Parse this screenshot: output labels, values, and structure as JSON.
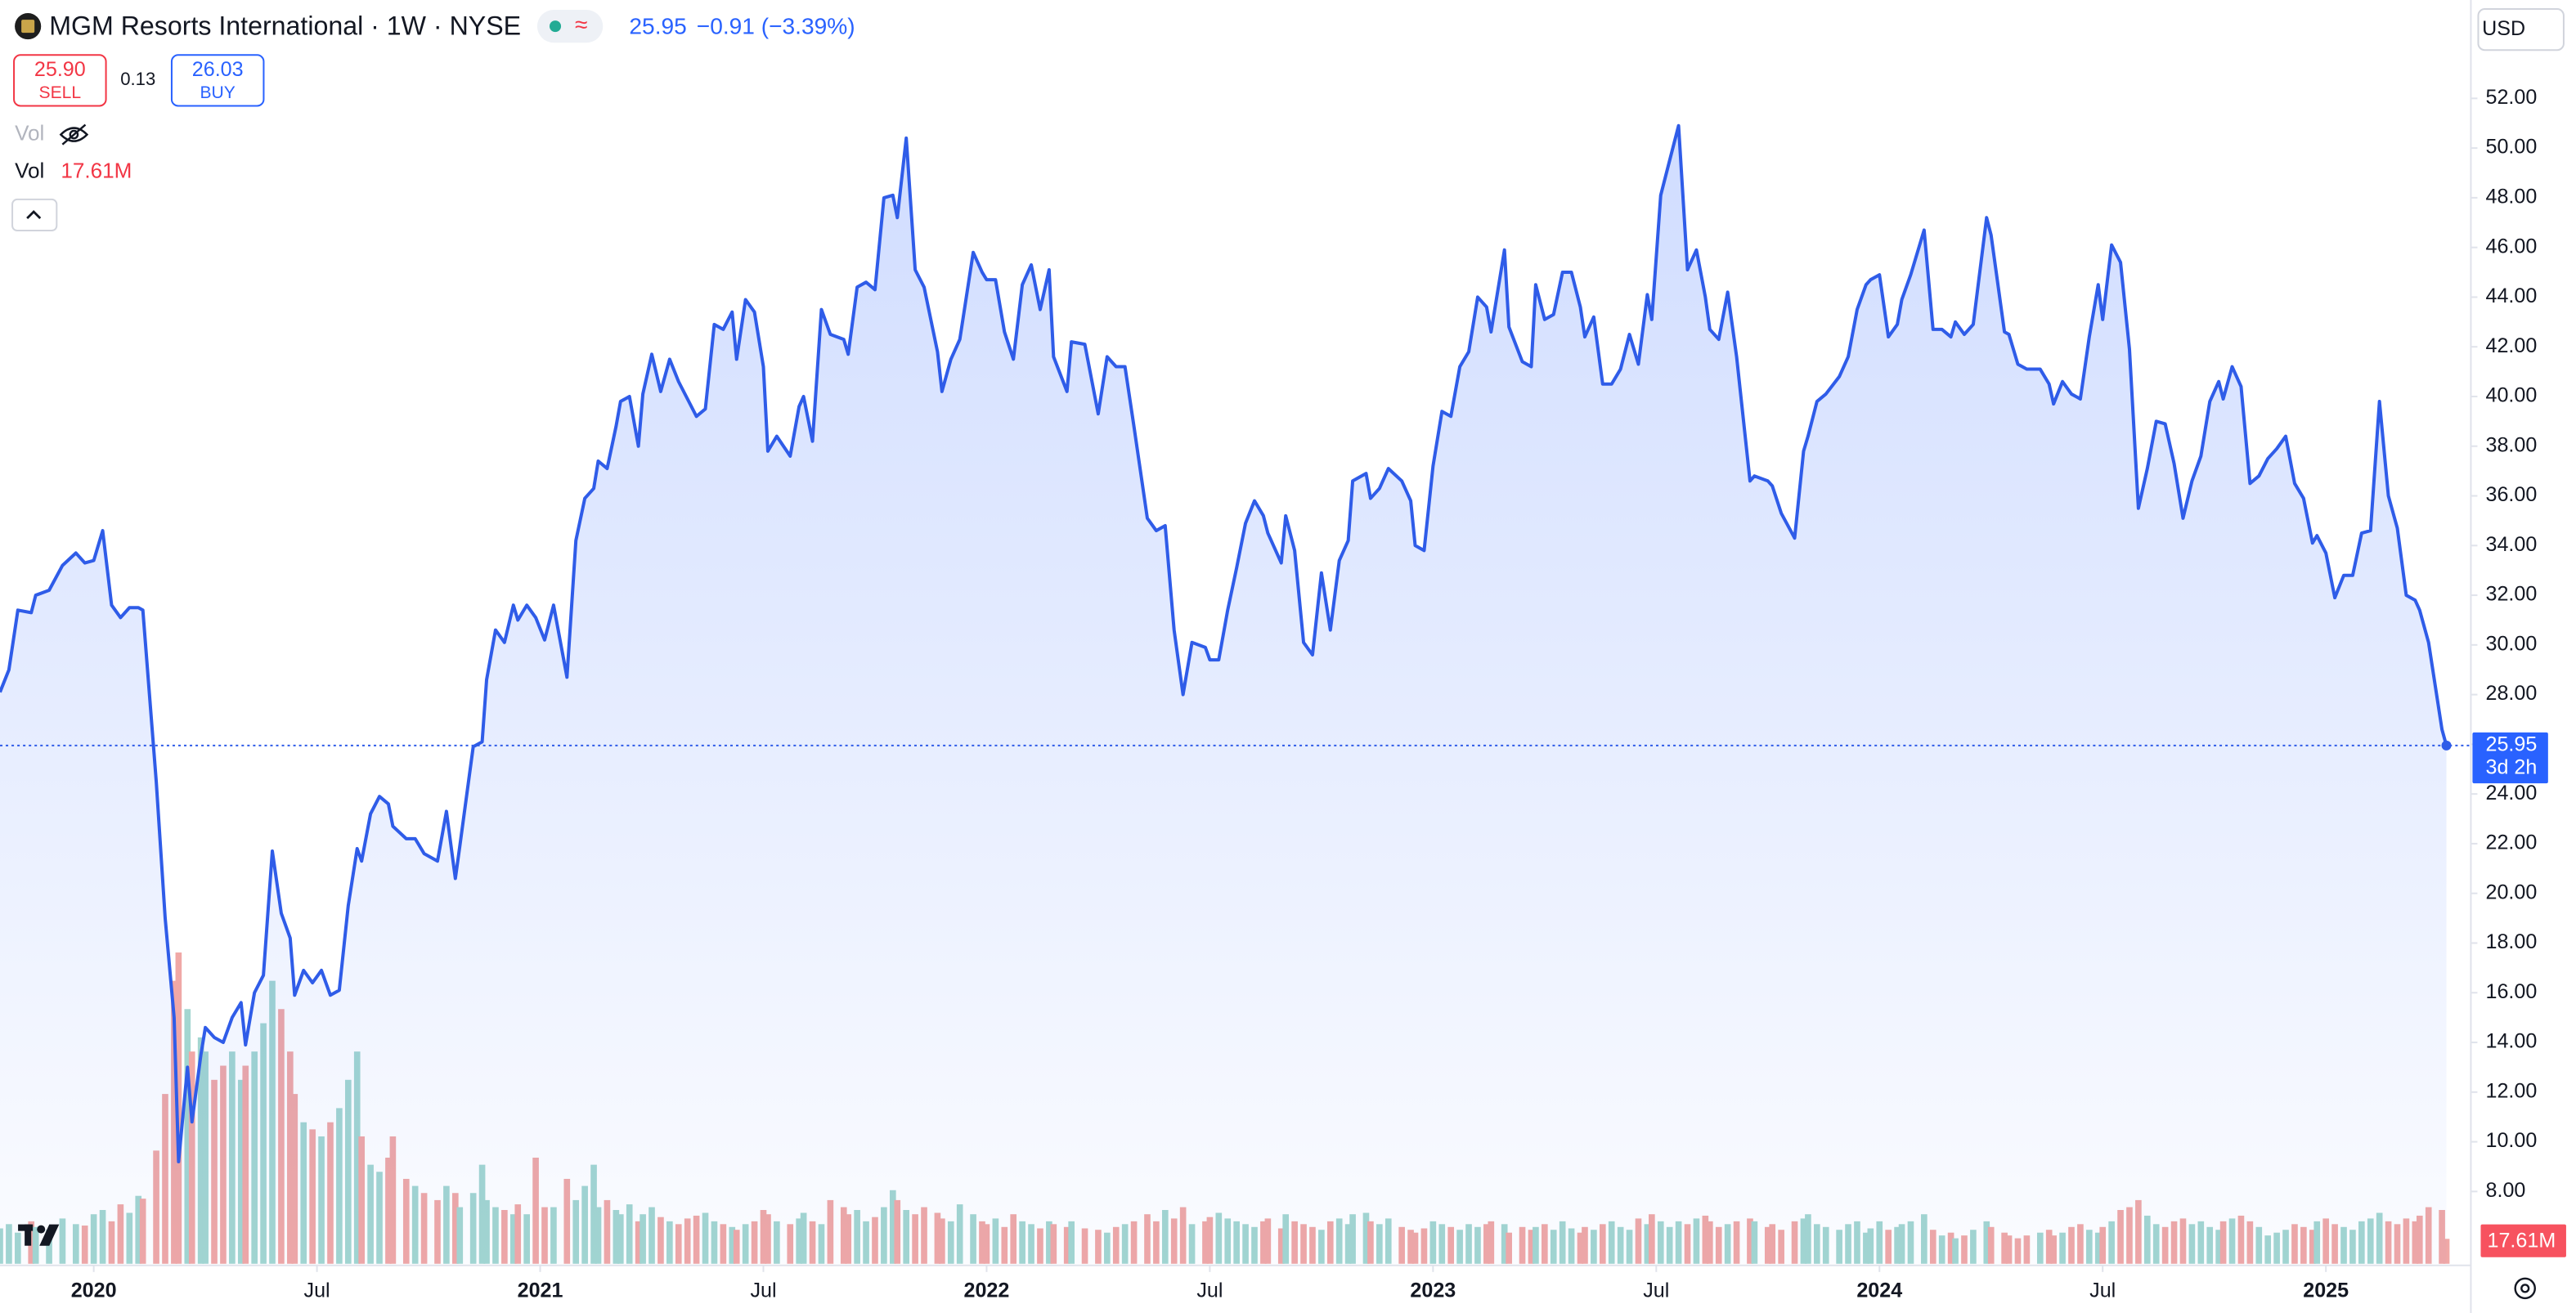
{
  "header": {
    "title": "MGM Resorts International · 1W · NYSE",
    "pill_symbol": "≈",
    "price": "25.95",
    "change": "−0.91 (−3.39%)",
    "sell_price": "25.90",
    "sell": "SELL",
    "spread": "0.13",
    "buy_price": "26.03",
    "buy": "BUY",
    "vol_hidden": "Vol",
    "vol": "Vol",
    "vol_value": "17.61M",
    "currency": "USD"
  },
  "chart_data": {
    "type": "line",
    "color": "#2f5ce8",
    "x": [
      2019.79,
      2019.81,
      2019.83,
      2019.86,
      2019.87,
      2019.9,
      2019.93,
      2019.96,
      2019.98,
      2020.0,
      2020.02,
      2020.04,
      2020.06,
      2020.08,
      2020.1,
      2020.11,
      2020.14,
      2020.16,
      2020.18,
      2020.19,
      2020.21,
      2020.22,
      2020.24,
      2020.25,
      2020.27,
      2020.29,
      2020.31,
      2020.33,
      2020.34,
      2020.36,
      2020.38,
      2020.4,
      2020.42,
      2020.44,
      2020.45,
      2020.47,
      2020.49,
      2020.51,
      2020.53,
      2020.55,
      2020.57,
      2020.59,
      2020.6,
      2020.62,
      2020.64,
      2020.66,
      2020.67,
      2020.7,
      2020.72,
      2020.74,
      2020.77,
      2020.79,
      2020.81,
      2020.82,
      2020.85,
      2020.87,
      2020.88,
      2020.9,
      2020.92,
      2020.94,
      2020.95,
      2020.97,
      2020.99,
      2021.01,
      2021.03,
      2021.06,
      2021.08,
      2021.1,
      2021.12,
      2021.13,
      2021.15,
      2021.17,
      2021.18,
      2021.2,
      2021.22,
      2021.23,
      2021.25,
      2021.27,
      2021.29,
      2021.31,
      2021.33,
      2021.35,
      2021.37,
      2021.39,
      2021.41,
      2021.43,
      2021.44,
      2021.46,
      2021.48,
      2021.5,
      2021.51,
      2021.53,
      2021.56,
      2021.58,
      2021.59,
      2021.61,
      2021.63,
      2021.65,
      2021.68,
      2021.69,
      2021.71,
      2021.73,
      2021.75,
      2021.77,
      2021.79,
      2021.8,
      2021.82,
      2021.84,
      2021.86,
      2021.89,
      2021.9,
      2021.92,
      2021.94,
      2021.97,
      2021.99,
      2022.0,
      2022.02,
      2022.04,
      2022.06,
      2022.08,
      2022.1,
      2022.12,
      2022.14,
      2022.15,
      2022.18,
      2022.19,
      2022.22,
      2022.25,
      2022.27,
      2022.29,
      2022.31,
      2022.33,
      2022.36,
      2022.38,
      2022.4,
      2022.42,
      2022.44,
      2022.46,
      2022.49,
      2022.5,
      2022.52,
      2022.54,
      2022.56,
      2022.58,
      2022.6,
      2022.62,
      2022.63,
      2022.66,
      2022.67,
      2022.69,
      2022.71,
      2022.73,
      2022.75,
      2022.77,
      2022.79,
      2022.81,
      2022.82,
      2022.85,
      2022.86,
      2022.88,
      2022.9,
      2022.93,
      2022.95,
      2022.96,
      2022.98,
      2023.0,
      2023.02,
      2023.04,
      2023.06,
      2023.08,
      2023.1,
      2023.12,
      2023.13,
      2023.16,
      2023.17,
      2023.2,
      2023.22,
      2023.23,
      2023.25,
      2023.27,
      2023.29,
      2023.31,
      2023.33,
      2023.34,
      2023.36,
      2023.38,
      2023.4,
      2023.42,
      2023.44,
      2023.46,
      2023.48,
      2023.49,
      2023.51,
      2023.53,
      2023.55,
      2023.57,
      2023.59,
      2023.61,
      2023.62,
      2023.64,
      2023.66,
      2023.68,
      2023.71,
      2023.72,
      2023.75,
      2023.76,
      2023.78,
      2023.81,
      2023.83,
      2023.84,
      2023.86,
      2023.88,
      2023.91,
      2023.93,
      2023.95,
      2023.97,
      2023.98,
      2024.0,
      2024.02,
      2024.04,
      2024.05,
      2024.07,
      2024.1,
      2024.12,
      2024.14,
      2024.16,
      2024.17,
      2024.19,
      2024.21,
      2024.24,
      2024.25,
      2024.28,
      2024.29,
      2024.31,
      2024.33,
      2024.36,
      2024.38,
      2024.39,
      2024.41,
      2024.43,
      2024.45,
      2024.47,
      2024.49,
      2024.5,
      2024.52,
      2024.54,
      2024.56,
      2024.58,
      2024.6,
      2024.62,
      2024.64,
      2024.66,
      2024.68,
      2024.7,
      2024.72,
      2024.74,
      2024.76,
      2024.77,
      2024.79,
      2024.81,
      2024.83,
      2024.85,
      2024.87,
      2024.89,
      2024.91,
      2024.93,
      2024.95,
      2024.97,
      2024.98,
      2025.0,
      2025.02,
      2025.04,
      2025.06,
      2025.08,
      2025.1,
      2025.12,
      2025.14,
      2025.16,
      2025.18,
      2025.2,
      2025.21,
      2025.23,
      2025.26,
      2025.27
    ],
    "values": [
      28.1,
      29.0,
      31.4,
      31.3,
      32.0,
      32.2,
      33.2,
      33.7,
      33.3,
      33.4,
      34.6,
      31.6,
      31.1,
      31.5,
      31.5,
      31.4,
      24.5,
      19.0,
      15.0,
      9.2,
      13.0,
      10.8,
      13.5,
      14.6,
      14.2,
      14.0,
      15.0,
      15.6,
      13.9,
      16.0,
      16.7,
      21.7,
      19.2,
      18.2,
      15.9,
      16.9,
      16.4,
      16.9,
      15.9,
      16.1,
      19.5,
      21.8,
      21.3,
      23.2,
      23.9,
      23.6,
      22.7,
      22.2,
      22.2,
      21.6,
      21.3,
      23.3,
      20.6,
      21.9,
      25.9,
      26.1,
      28.6,
      30.6,
      30.1,
      31.6,
      31.0,
      31.6,
      31.1,
      30.2,
      31.6,
      28.7,
      34.2,
      35.9,
      36.3,
      37.4,
      37.1,
      38.8,
      39.8,
      40.0,
      38.0,
      40.1,
      41.7,
      40.2,
      41.5,
      40.6,
      39.9,
      39.2,
      39.5,
      42.9,
      42.7,
      43.4,
      41.5,
      43.9,
      43.4,
      41.2,
      37.8,
      38.4,
      37.6,
      39.6,
      40.0,
      38.2,
      43.5,
      42.5,
      42.3,
      41.7,
      44.4,
      44.6,
      44.3,
      48.0,
      48.1,
      47.2,
      50.4,
      45.1,
      44.4,
      41.8,
      40.2,
      41.5,
      42.3,
      45.8,
      45.0,
      44.7,
      44.7,
      42.6,
      41.5,
      44.5,
      45.3,
      43.5,
      45.1,
      41.6,
      40.2,
      42.2,
      42.1,
      39.3,
      41.6,
      41.2,
      41.2,
      38.8,
      35.1,
      34.6,
      34.8,
      30.6,
      28.0,
      30.1,
      29.9,
      29.4,
      29.4,
      31.4,
      33.1,
      34.9,
      35.8,
      35.2,
      34.5,
      33.3,
      35.2,
      33.8,
      30.1,
      29.6,
      32.9,
      30.6,
      33.4,
      34.2,
      36.6,
      36.9,
      35.9,
      36.3,
      37.1,
      36.6,
      35.8,
      34.0,
      33.8,
      37.2,
      39.4,
      39.2,
      41.2,
      41.8,
      44.0,
      43.6,
      42.6,
      45.9,
      42.8,
      41.4,
      41.2,
      44.5,
      43.1,
      43.3,
      45.0,
      45.0,
      43.6,
      42.4,
      43.2,
      40.5,
      40.5,
      41.1,
      42.5,
      41.3,
      44.1,
      43.1,
      48.1,
      49.5,
      50.9,
      45.1,
      45.9,
      44.0,
      42.7,
      42.3,
      44.2,
      41.6,
      36.6,
      36.8,
      36.6,
      36.4,
      35.3,
      34.3,
      37.8,
      38.4,
      39.8,
      40.1,
      40.8,
      41.6,
      43.5,
      44.5,
      44.7,
      44.9,
      42.4,
      42.9,
      43.9,
      44.9,
      46.7,
      42.7,
      42.7,
      42.4,
      43.0,
      42.5,
      42.9,
      47.2,
      46.5,
      42.6,
      42.5,
      41.3,
      41.1,
      41.1,
      40.5,
      39.7,
      40.6,
      40.1,
      39.9,
      42.4,
      44.5,
      43.1,
      46.1,
      45.4,
      41.9,
      35.5,
      37.1,
      39.0,
      38.9,
      37.3,
      35.1,
      36.6,
      37.6,
      39.8,
      40.6,
      39.9,
      41.2,
      40.4,
      36.5,
      36.8,
      37.5,
      37.9,
      38.4,
      36.5,
      35.9,
      34.1,
      34.4,
      33.7,
      31.9,
      32.8,
      32.8,
      34.5,
      34.6,
      39.8,
      36.0,
      34.7,
      32.0,
      31.8,
      31.4,
      30.1,
      26.6,
      25.95
    ],
    "volume": {
      "up_color": "#a3d6d0",
      "down_color": "#f0a8a6",
      "vlim": [
        0,
        232
      ],
      "values": [
        25,
        28,
        22,
        30,
        26,
        24,
        32,
        28,
        27,
        35,
        38,
        30,
        42,
        36,
        48,
        46,
        80,
        120,
        200,
        220,
        180,
        150,
        160,
        150,
        130,
        140,
        150,
        130,
        140,
        150,
        170,
        200,
        180,
        150,
        120,
        100,
        95,
        90,
        100,
        110,
        130,
        150,
        90,
        70,
        65,
        75,
        90,
        60,
        55,
        50,
        45,
        55,
        50,
        40,
        50,
        70,
        45,
        40,
        38,
        35,
        42,
        35,
        75,
        40,
        40,
        60,
        45,
        55,
        70,
        40,
        45,
        38,
        35,
        42,
        30,
        35,
        40,
        33,
        30,
        28,
        32,
        34,
        36,
        30,
        28,
        26,
        24,
        28,
        30,
        38,
        35,
        30,
        28,
        32,
        36,
        30,
        28,
        45,
        40,
        35,
        38,
        30,
        33,
        40,
        52,
        45,
        38,
        35,
        40,
        36,
        32,
        30,
        42,
        35,
        30,
        28,
        32,
        26,
        35,
        30,
        28,
        25,
        30,
        28,
        26,
        30,
        25,
        24,
        22,
        26,
        28,
        30,
        35,
        30,
        38,
        32,
        40,
        28,
        30,
        33,
        36,
        32,
        30,
        28,
        26,
        30,
        32,
        25,
        35,
        30,
        28,
        26,
        24,
        30,
        32,
        28,
        35,
        36,
        30,
        28,
        32,
        26,
        24,
        22,
        25,
        30,
        28,
        26,
        24,
        28,
        26,
        28,
        30,
        28,
        22,
        26,
        24,
        26,
        28,
        24,
        30,
        25,
        22,
        26,
        24,
        28,
        30,
        26,
        24,
        32,
        28,
        35,
        30,
        26,
        30,
        28,
        32,
        34,
        30,
        26,
        28,
        30,
        32,
        30,
        26,
        28,
        24,
        30,
        32,
        35,
        28,
        26,
        24,
        28,
        30,
        22,
        25,
        30,
        24,
        26,
        28,
        30,
        35,
        24,
        20,
        22,
        18,
        20,
        24,
        30,
        26,
        22,
        20,
        18,
        20,
        22,
        24,
        20,
        22,
        26,
        28,
        24,
        22,
        26,
        30,
        38,
        40,
        45,
        34,
        28,
        26,
        30,
        32,
        28,
        30,
        26,
        24,
        30,
        32,
        34,
        30,
        26,
        20,
        22,
        24,
        28,
        26,
        24,
        30,
        32,
        28,
        26,
        24,
        30,
        32,
        36,
        30,
        28,
        32,
        30,
        34,
        40,
        38,
        17.61
      ]
    },
    "xlim": [
      2019.79,
      2025.31
    ],
    "xticks": [
      2020,
      {
        "value": 2020.5,
        "label": "Jul"
      },
      2021,
      {
        "value": 2021.5,
        "label": "Jul"
      },
      2022,
      {
        "value": 2022.5,
        "label": "Jul"
      },
      2023,
      {
        "value": 2023.5,
        "label": "Jul"
      },
      2024,
      {
        "value": 2024.5,
        "label": "Jul"
      },
      2025
    ],
    "ylim": [
      5.09,
      55.96
    ],
    "yticks": [
      {
        "value": 8,
        "label": "8.00"
      },
      {
        "value": 10,
        "label": "10.00"
      },
      {
        "value": 12,
        "label": "12.00"
      },
      {
        "value": 14,
        "label": "14.00"
      },
      {
        "value": 16,
        "label": "16.00"
      },
      {
        "value": 18,
        "label": "18.00"
      },
      {
        "value": 20,
        "label": "20.00"
      },
      {
        "value": 22,
        "label": "22.00"
      },
      {
        "value": 24,
        "label": "24.00"
      },
      {
        "value": 26,
        "label": "26.00"
      },
      {
        "value": 28,
        "label": "28.00"
      },
      {
        "value": 30,
        "label": "30.00"
      },
      {
        "value": 32,
        "label": "32.00"
      },
      {
        "value": 34,
        "label": "34.00"
      },
      {
        "value": 36,
        "label": "36.00"
      },
      {
        "value": 38,
        "label": "38.00"
      },
      {
        "value": 40,
        "label": "40.00"
      },
      {
        "value": 42,
        "label": "42.00"
      },
      {
        "value": 44,
        "label": "44.00"
      },
      {
        "value": 46,
        "label": "46.00"
      },
      {
        "value": 48,
        "label": "48.00"
      },
      {
        "value": 50,
        "label": "50.00"
      },
      {
        "value": 52,
        "label": "52.00"
      }
    ],
    "grid": false,
    "price_badge": "25.95",
    "price_badge_time": "3d 2h",
    "volume_badge": "17.61M"
  }
}
